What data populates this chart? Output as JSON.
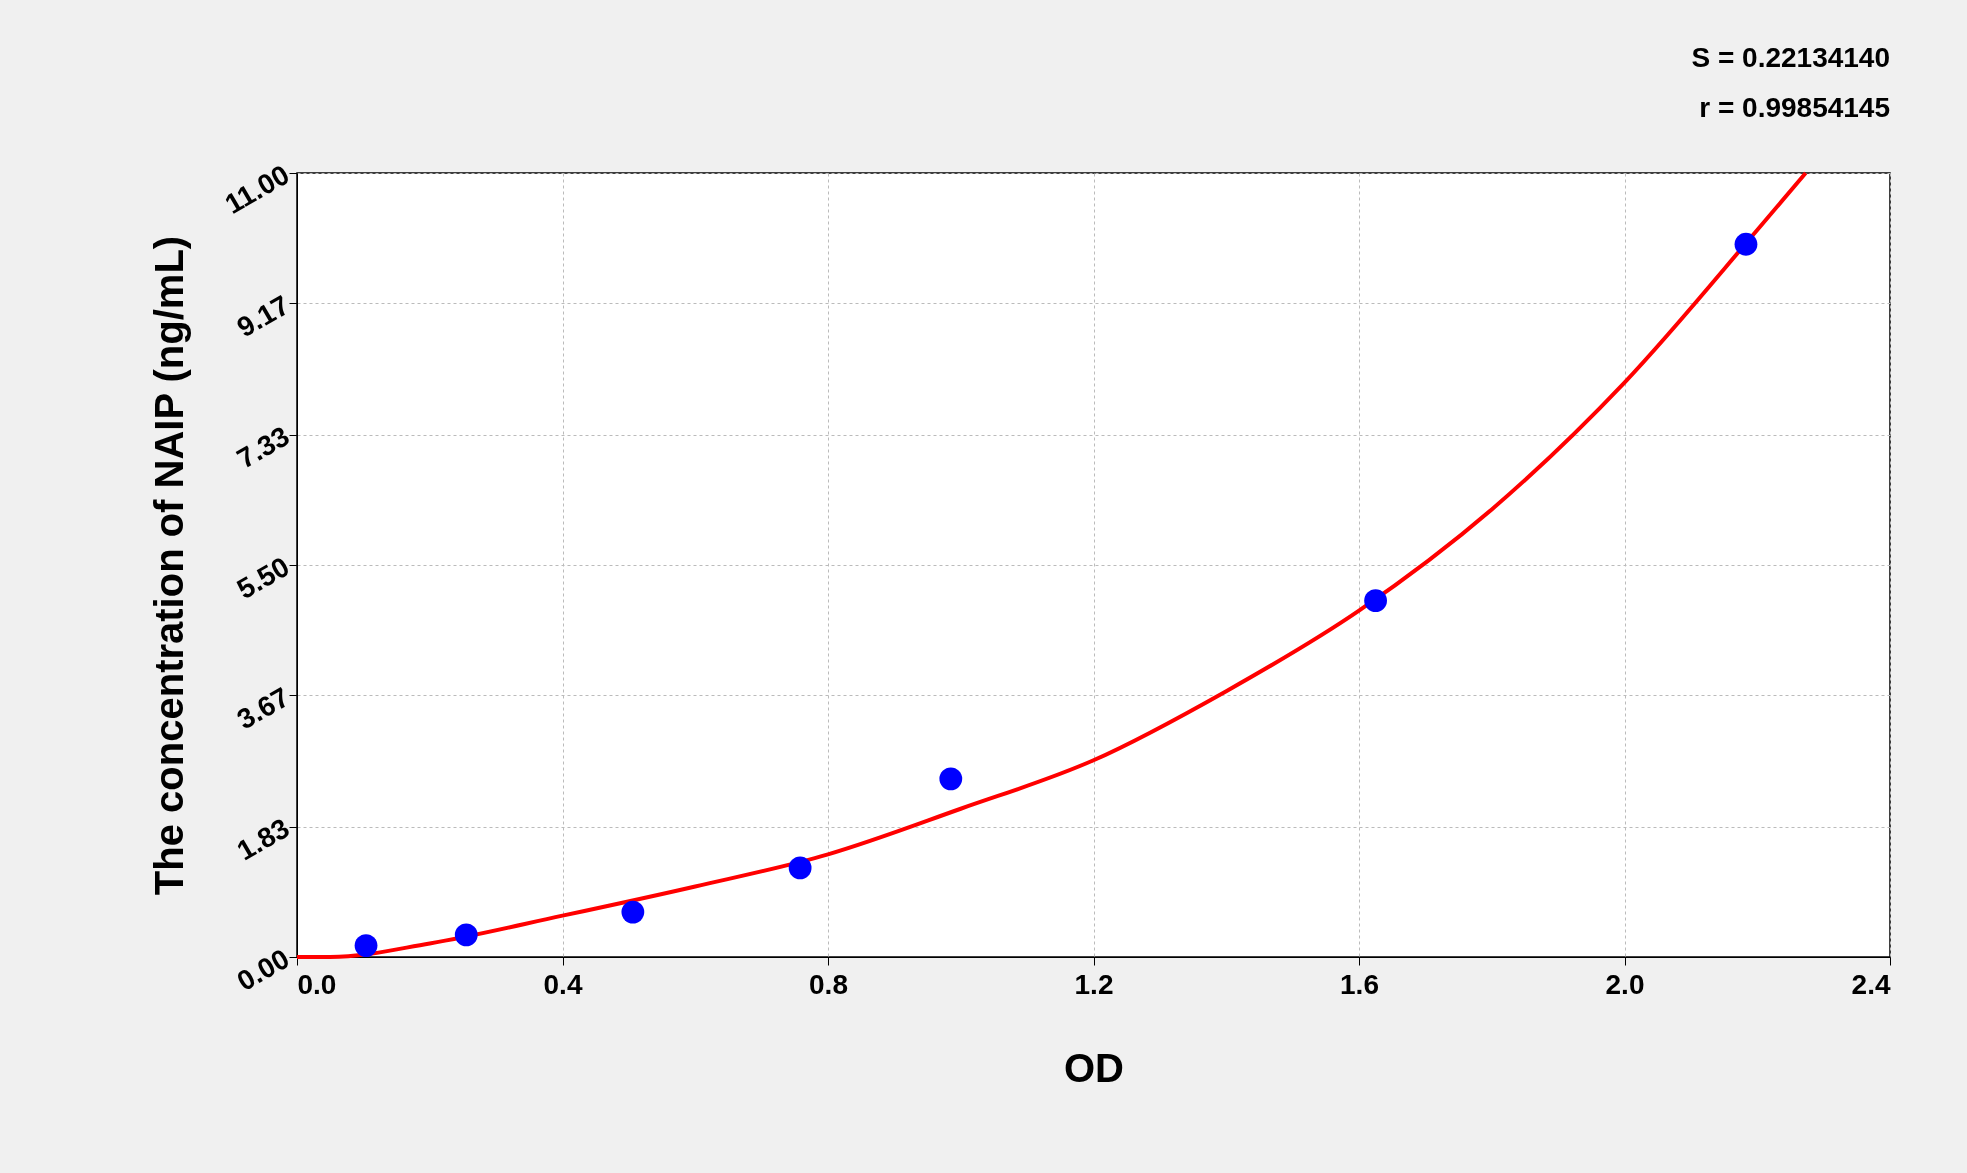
{
  "chart_data": {
    "type": "scatter",
    "xlabel": "OD",
    "ylabel": "The concentration of NAIP (ng/mL)",
    "annotations": [
      "S = 0.22134140",
      "r = 0.99854145"
    ],
    "xlim": [
      0,
      2.4
    ],
    "xticks": [
      {
        "value": 0,
        "label": "0.0"
      },
      0.4,
      0.8,
      1.2,
      1.6,
      {
        "value": 2,
        "label": "2.0"
      },
      2.4
    ],
    "ylim": [
      0,
      11
    ],
    "yticks": [
      {
        "value": 0,
        "label": "0.00"
      },
      1.83,
      3.67,
      {
        "value": 5.5,
        "label": "5.50"
      },
      7.33,
      9.17,
      {
        "value": 11,
        "label": "11.00"
      }
    ],
    "grid": true,
    "legend": false,
    "series": [
      {
        "color": "#0000ff",
        "marker": "circle",
        "x": [
          0.104,
          0.255,
          0.506,
          0.758,
          0.985,
          1.625,
          2.183
        ],
        "values": [
          0.16,
          0.31,
          0.63,
          1.25,
          2.5,
          5,
          10
        ]
      },
      {
        "type": "line",
        "color": "#ff0000",
        "marker": "none",
        "line_style": "solid",
        "x": [
          0,
          0.05,
          0.2,
          0.4,
          0.6,
          0.8,
          1.0,
          1.2,
          1.4,
          1.6,
          1.8,
          2.0,
          2.2,
          2.273
        ],
        "values": [
          0,
          0,
          0.19,
          0.58,
          0.99,
          1.44,
          2.08,
          2.76,
          3.73,
          4.86,
          6.28,
          8.06,
          10.2,
          11
        ]
      }
    ]
  }
}
